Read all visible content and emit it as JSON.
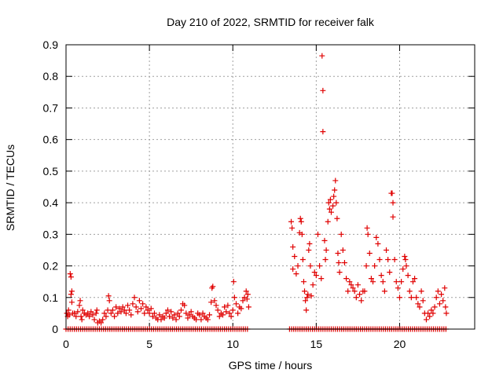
{
  "chart_data": {
    "type": "scatter",
    "title": "Day 210 of 2022, SRMTID for receiver falk",
    "xlabel": "GPS time / hours",
    "ylabel": "SRMTID / TECUs",
    "xlim": [
      0,
      24.5
    ],
    "ylim": [
      0,
      0.9
    ],
    "x_ticks": [
      "0",
      "5",
      "10",
      "15",
      "20"
    ],
    "y_ticks": [
      "0",
      "0.1",
      "0.2",
      "0.3",
      "0.4",
      "0.5",
      "0.6",
      "0.7",
      "0.8",
      "0.9"
    ],
    "x_tick_values": [
      0,
      5,
      10,
      15,
      20
    ],
    "y_tick_values": [
      0,
      0.1,
      0.2,
      0.3,
      0.4,
      0.5,
      0.6,
      0.7,
      0.8,
      0.9
    ],
    "grid": true,
    "marker": "+",
    "marker_color": "#e00000",
    "series": [
      {
        "name": "SRMTID",
        "points": [
          [
            0.05,
            0.05
          ],
          [
            0.1,
            0.04
          ],
          [
            0.15,
            0.06
          ],
          [
            0.2,
            0.045
          ],
          [
            0.25,
            0.175
          ],
          [
            0.3,
            0.165
          ],
          [
            0.3,
            0.11
          ],
          [
            0.35,
            0.085
          ],
          [
            0.35,
            0.12
          ],
          [
            0.4,
            0.05
          ],
          [
            0.5,
            0.05
          ],
          [
            0.6,
            0.04
          ],
          [
            0.7,
            0.055
          ],
          [
            0.8,
            0.075
          ],
          [
            0.85,
            0.09
          ],
          [
            0.9,
            0.04
          ],
          [
            0.95,
            0.03
          ],
          [
            1.0,
            0.06
          ],
          [
            1.1,
            0.05
          ],
          [
            1.2,
            0.045
          ],
          [
            1.3,
            0.05
          ],
          [
            1.4,
            0.04
          ],
          [
            1.5,
            0.055
          ],
          [
            1.6,
            0.045
          ],
          [
            1.7,
            0.03
          ],
          [
            1.8,
            0.05
          ],
          [
            1.85,
            0.06
          ],
          [
            1.9,
            0.02
          ],
          [
            2.0,
            0.025
          ],
          [
            2.1,
            0.02
          ],
          [
            2.2,
            0.03
          ],
          [
            2.3,
            0.05
          ],
          [
            2.4,
            0.04
          ],
          [
            2.5,
            0.06
          ],
          [
            2.55,
            0.105
          ],
          [
            2.6,
            0.09
          ],
          [
            2.7,
            0.05
          ],
          [
            2.8,
            0.06
          ],
          [
            2.9,
            0.04
          ],
          [
            3.0,
            0.07
          ],
          [
            3.1,
            0.05
          ],
          [
            3.2,
            0.065
          ],
          [
            3.3,
            0.055
          ],
          [
            3.4,
            0.07
          ],
          [
            3.5,
            0.06
          ],
          [
            3.6,
            0.05
          ],
          [
            3.7,
            0.075
          ],
          [
            3.8,
            0.06
          ],
          [
            3.9,
            0.045
          ],
          [
            4.0,
            0.08
          ],
          [
            4.1,
            0.1
          ],
          [
            4.2,
            0.07
          ],
          [
            4.3,
            0.055
          ],
          [
            4.4,
            0.09
          ],
          [
            4.5,
            0.065
          ],
          [
            4.6,
            0.08
          ],
          [
            4.7,
            0.05
          ],
          [
            4.8,
            0.07
          ],
          [
            4.9,
            0.06
          ],
          [
            5.0,
            0.05
          ],
          [
            5.1,
            0.065
          ],
          [
            5.2,
            0.04
          ],
          [
            5.3,
            0.05
          ],
          [
            5.4,
            0.035
          ],
          [
            5.5,
            0.03
          ],
          [
            5.6,
            0.045
          ],
          [
            5.7,
            0.03
          ],
          [
            5.8,
            0.04
          ],
          [
            5.9,
            0.035
          ],
          [
            6.0,
            0.05
          ],
          [
            6.1,
            0.06
          ],
          [
            6.2,
            0.04
          ],
          [
            6.3,
            0.055
          ],
          [
            6.4,
            0.035
          ],
          [
            6.5,
            0.045
          ],
          [
            6.6,
            0.03
          ],
          [
            6.7,
            0.05
          ],
          [
            6.8,
            0.04
          ],
          [
            6.9,
            0.06
          ],
          [
            7.0,
            0.08
          ],
          [
            7.1,
            0.075
          ],
          [
            7.2,
            0.05
          ],
          [
            7.3,
            0.035
          ],
          [
            7.4,
            0.045
          ],
          [
            7.5,
            0.055
          ],
          [
            7.6,
            0.04
          ],
          [
            7.7,
            0.035
          ],
          [
            7.8,
            0.03
          ],
          [
            7.9,
            0.05
          ],
          [
            8.0,
            0.045
          ],
          [
            8.1,
            0.03
          ],
          [
            8.2,
            0.05
          ],
          [
            8.3,
            0.04
          ],
          [
            8.4,
            0.035
          ],
          [
            8.5,
            0.03
          ],
          [
            8.6,
            0.045
          ],
          [
            8.7,
            0.085
          ],
          [
            8.75,
            0.13
          ],
          [
            8.8,
            0.135
          ],
          [
            8.9,
            0.09
          ],
          [
            9.0,
            0.075
          ],
          [
            9.1,
            0.06
          ],
          [
            9.2,
            0.04
          ],
          [
            9.3,
            0.05
          ],
          [
            9.4,
            0.045
          ],
          [
            9.5,
            0.07
          ],
          [
            9.6,
            0.055
          ],
          [
            9.7,
            0.075
          ],
          [
            9.8,
            0.05
          ],
          [
            9.9,
            0.04
          ],
          [
            10.0,
            0.06
          ],
          [
            10.05,
            0.15
          ],
          [
            10.1,
            0.1
          ],
          [
            10.2,
            0.08
          ],
          [
            10.3,
            0.05
          ],
          [
            10.4,
            0.07
          ],
          [
            10.5,
            0.065
          ],
          [
            10.6,
            0.09
          ],
          [
            10.7,
            0.1
          ],
          [
            10.8,
            0.12
          ],
          [
            10.85,
            0.095
          ],
          [
            10.9,
            0.11
          ],
          [
            10.95,
            0.07
          ],
          [
            13.5,
            0.34
          ],
          [
            13.55,
            0.32
          ],
          [
            13.6,
            0.26
          ],
          [
            13.6,
            0.19
          ],
          [
            13.7,
            0.23
          ],
          [
            13.8,
            0.175
          ],
          [
            13.9,
            0.2
          ],
          [
            14.0,
            0.305
          ],
          [
            14.05,
            0.35
          ],
          [
            14.1,
            0.34
          ],
          [
            14.15,
            0.3
          ],
          [
            14.2,
            0.22
          ],
          [
            14.25,
            0.15
          ],
          [
            14.3,
            0.12
          ],
          [
            14.35,
            0.09
          ],
          [
            14.4,
            0.06
          ],
          [
            14.45,
            0.1
          ],
          [
            14.5,
            0.11
          ],
          [
            14.55,
            0.25
          ],
          [
            14.6,
            0.27
          ],
          [
            14.65,
            0.2
          ],
          [
            14.7,
            0.105
          ],
          [
            14.8,
            0.14
          ],
          [
            14.9,
            0.18
          ],
          [
            15.0,
            0.17
          ],
          [
            15.1,
            0.3
          ],
          [
            15.2,
            0.2
          ],
          [
            15.3,
            0.16
          ],
          [
            15.35,
            0.865
          ],
          [
            15.4,
            0.755
          ],
          [
            15.4,
            0.625
          ],
          [
            15.5,
            0.28
          ],
          [
            15.55,
            0.22
          ],
          [
            15.6,
            0.25
          ],
          [
            15.7,
            0.34
          ],
          [
            15.75,
            0.4
          ],
          [
            15.8,
            0.38
          ],
          [
            15.85,
            0.41
          ],
          [
            15.9,
            0.37
          ],
          [
            16.0,
            0.39
          ],
          [
            16.05,
            0.42
          ],
          [
            16.1,
            0.44
          ],
          [
            16.15,
            0.47
          ],
          [
            16.2,
            0.4
          ],
          [
            16.25,
            0.35
          ],
          [
            16.3,
            0.24
          ],
          [
            16.35,
            0.21
          ],
          [
            16.4,
            0.18
          ],
          [
            16.5,
            0.3
          ],
          [
            16.6,
            0.25
          ],
          [
            16.7,
            0.21
          ],
          [
            16.8,
            0.16
          ],
          [
            16.9,
            0.12
          ],
          [
            17.0,
            0.15
          ],
          [
            17.1,
            0.14
          ],
          [
            17.2,
            0.13
          ],
          [
            17.3,
            0.12
          ],
          [
            17.4,
            0.1
          ],
          [
            17.5,
            0.14
          ],
          [
            17.6,
            0.11
          ],
          [
            17.7,
            0.09
          ],
          [
            17.8,
            0.12
          ],
          [
            17.9,
            0.12
          ],
          [
            18.0,
            0.2
          ],
          [
            18.05,
            0.32
          ],
          [
            18.1,
            0.3
          ],
          [
            18.2,
            0.24
          ],
          [
            18.3,
            0.16
          ],
          [
            18.4,
            0.15
          ],
          [
            18.5,
            0.2
          ],
          [
            18.6,
            0.29
          ],
          [
            18.7,
            0.27
          ],
          [
            18.8,
            0.22
          ],
          [
            18.9,
            0.17
          ],
          [
            19.0,
            0.15
          ],
          [
            19.1,
            0.12
          ],
          [
            19.2,
            0.25
          ],
          [
            19.3,
            0.22
          ],
          [
            19.4,
            0.18
          ],
          [
            19.5,
            0.43
          ],
          [
            19.55,
            0.43
          ],
          [
            19.6,
            0.4
          ],
          [
            19.6,
            0.355
          ],
          [
            19.7,
            0.22
          ],
          [
            19.8,
            0.15
          ],
          [
            19.9,
            0.13
          ],
          [
            20.0,
            0.1
          ],
          [
            20.1,
            0.15
          ],
          [
            20.2,
            0.19
          ],
          [
            20.3,
            0.23
          ],
          [
            20.35,
            0.22
          ],
          [
            20.4,
            0.2
          ],
          [
            20.5,
            0.17
          ],
          [
            20.6,
            0.12
          ],
          [
            20.7,
            0.1
          ],
          [
            20.8,
            0.15
          ],
          [
            20.9,
            0.16
          ],
          [
            21.0,
            0.1
          ],
          [
            21.1,
            0.08
          ],
          [
            21.2,
            0.07
          ],
          [
            21.3,
            0.12
          ],
          [
            21.4,
            0.09
          ],
          [
            21.5,
            0.05
          ],
          [
            21.6,
            0.03
          ],
          [
            21.7,
            0.05
          ],
          [
            21.8,
            0.04
          ],
          [
            21.9,
            0.06
          ],
          [
            22.0,
            0.05
          ],
          [
            22.1,
            0.07
          ],
          [
            22.2,
            0.1
          ],
          [
            22.3,
            0.12
          ],
          [
            22.4,
            0.08
          ],
          [
            22.5,
            0.11
          ],
          [
            22.6,
            0.09
          ],
          [
            22.7,
            0.13
          ],
          [
            22.75,
            0.07
          ],
          [
            22.8,
            0.05
          ]
        ]
      }
    ],
    "zero_baseline": {
      "segments": [
        [
          0.0,
          10.9
        ],
        [
          13.4,
          22.8
        ]
      ],
      "step": 0.125,
      "value": 0
    }
  }
}
